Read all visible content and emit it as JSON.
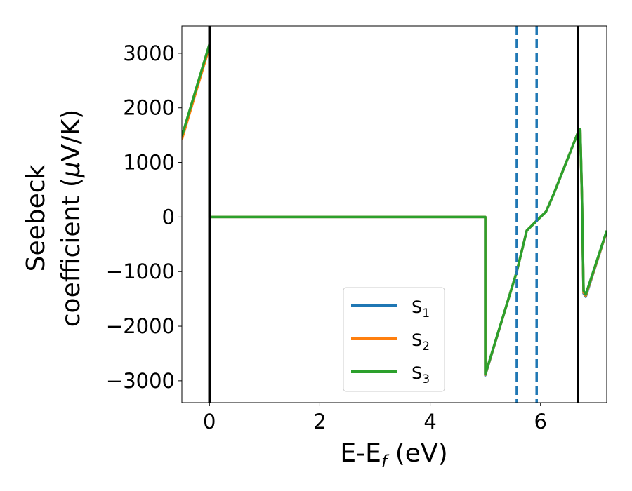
{
  "chart_data": {
    "type": "line",
    "xlabel": {
      "main": "E-E",
      "sub": "f",
      "unit": " (eV)"
    },
    "ylabel": {
      "line1": "Seebeck",
      "line2_prefix": "coefficient  (",
      "mu": "μ",
      "line2_suffix": "V/K)"
    },
    "xlim": [
      -0.5,
      7.2
    ],
    "ylim": [
      -3400,
      3500
    ],
    "xticks": [
      0,
      2,
      4,
      6
    ],
    "yticks": [
      -3000,
      -2000,
      -1000,
      0,
      1000,
      2000,
      3000
    ],
    "xtick_labels": [
      "0",
      "2",
      "4",
      "6"
    ],
    "ytick_labels": [
      "−3000",
      "−2000",
      "−1000",
      "0",
      "1000",
      "2000",
      "3000"
    ],
    "grid": false,
    "legend_position": "lower-center",
    "vlines_solid": [
      0.0,
      6.68
    ],
    "vlines_dashed": [
      5.57,
      5.93
    ],
    "vline_solid_color": "#000000",
    "vline_dashed_color": "#1f77b4",
    "series": [
      {
        "name": "S",
        "sub": "1",
        "color": "#1f77b4",
        "x": [
          -0.5,
          0.0,
          0.0,
          0.02,
          4.98,
          5.0,
          5.0,
          5.57,
          5.75,
          5.93,
          6.1,
          6.25,
          6.68,
          6.72,
          6.75,
          6.78,
          6.82,
          7.2
        ],
        "y": [
          1450,
          3150,
          0,
          0,
          0,
          0,
          -2900,
          -1000,
          -250,
          -70,
          100,
          450,
          1550,
          1600,
          400,
          -1400,
          -1460,
          -260
        ]
      },
      {
        "name": "S",
        "sub": "2",
        "color": "#ff7f0e",
        "x": [
          -0.5,
          0.0,
          0.0,
          0.02,
          4.98,
          5.0,
          5.0,
          5.57,
          5.75,
          5.93,
          6.1,
          6.25,
          6.68,
          6.72,
          6.75,
          6.78,
          6.82,
          7.2
        ],
        "y": [
          1420,
          3120,
          0,
          0,
          0,
          0,
          -2890,
          -1000,
          -250,
          -70,
          100,
          450,
          1550,
          1600,
          400,
          -1380,
          -1440,
          -260
        ]
      },
      {
        "name": "S",
        "sub": "3",
        "color": "#2ca02c",
        "x": [
          -0.5,
          0.0,
          0.0,
          0.02,
          4.98,
          5.0,
          5.0,
          5.57,
          5.75,
          5.93,
          6.1,
          6.25,
          6.68,
          6.72,
          6.75,
          6.78,
          6.82,
          7.2
        ],
        "y": [
          1480,
          3170,
          0,
          0,
          0,
          0,
          -2880,
          -1000,
          -250,
          -70,
          100,
          450,
          1550,
          1610,
          420,
          -1350,
          -1420,
          -250
        ]
      }
    ]
  }
}
